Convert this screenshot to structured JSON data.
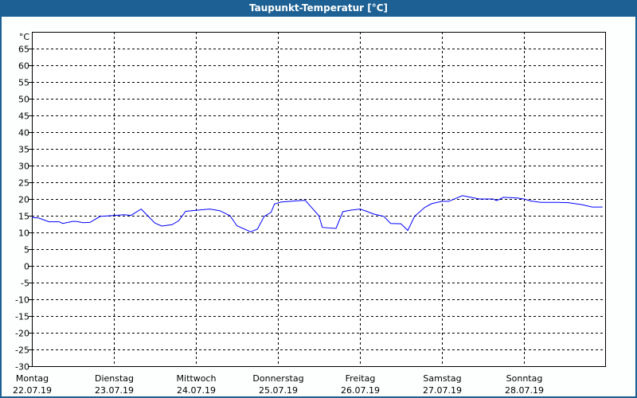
{
  "window": {
    "title": "Taupunkt-Temperatur [°C]"
  },
  "chart_data": {
    "type": "line",
    "title": "Taupunkt-Temperatur [°C]",
    "ylabel": "°C",
    "ylim": [
      -30,
      70
    ],
    "yticks": [
      -30,
      -25,
      -20,
      -15,
      -10,
      -5,
      0,
      5,
      10,
      15,
      20,
      25,
      30,
      35,
      40,
      45,
      50,
      55,
      60,
      65
    ],
    "xlim": [
      "22.07.19 00:00",
      "29.07.19 00:00"
    ],
    "xticks": [
      {
        "day": "Montag",
        "date": "22.07.19"
      },
      {
        "day": "Dienstag",
        "date": "23.07.19"
      },
      {
        "day": "Mittwoch",
        "date": "24.07.19"
      },
      {
        "day": "Donnerstag",
        "date": "25.07.19"
      },
      {
        "day": "Freitag",
        "date": "26.07.19"
      },
      {
        "day": "Samstag",
        "date": "27.07.19"
      },
      {
        "day": "Sonntag",
        "date": "28.07.19"
      }
    ],
    "grid": true,
    "line_color": "#0000ff",
    "series": [
      {
        "points": [
          [
            "22.07.19 00:00",
            14.5
          ],
          [
            "22.07.19 02:00",
            14.3
          ],
          [
            "22.07.19 05:00",
            13.2
          ],
          [
            "22.07.19 08:00",
            13.2
          ],
          [
            "22.07.19 09:00",
            12.7
          ],
          [
            "22.07.19 12:00",
            13.3
          ],
          [
            "22.07.19 13:00",
            13.3
          ],
          [
            "22.07.19 15:00",
            12.9
          ],
          [
            "22.07.19 17:00",
            13.0
          ],
          [
            "22.07.19 20:00",
            14.8
          ],
          [
            "22.07.19 23:00",
            15.0
          ],
          [
            "23.07.19 03:00",
            15.3
          ],
          [
            "23.07.19 05:00",
            15.1
          ],
          [
            "23.07.19 08:00",
            17.0
          ],
          [
            "23.07.19 12:00",
            12.8
          ],
          [
            "23.07.19 14:00",
            11.9
          ],
          [
            "23.07.19 17:00",
            12.3
          ],
          [
            "23.07.19 19:00",
            13.5
          ],
          [
            "23.07.19 21:00",
            16.3
          ],
          [
            "24.07.19 00:00",
            16.6
          ],
          [
            "24.07.19 04:00",
            17.0
          ],
          [
            "24.07.19 07:00",
            16.5
          ],
          [
            "24.07.19 10:00",
            15.0
          ],
          [
            "24.07.19 12:00",
            12.0
          ],
          [
            "24.07.19 16:00",
            10.2
          ],
          [
            "24.07.19 18:00",
            11.0
          ],
          [
            "24.07.19 20:00",
            14.8
          ],
          [
            "24.07.19 22:00",
            16.0
          ],
          [
            "24.07.19 23:00",
            18.5
          ],
          [
            "25.07.19 01:00",
            19.1
          ],
          [
            "25.07.19 06:00",
            19.5
          ],
          [
            "25.07.19 08:00",
            19.6
          ],
          [
            "25.07.19 10:00",
            17.3
          ],
          [
            "25.07.19 12:00",
            15.0
          ],
          [
            "25.07.19 13:00",
            11.5
          ],
          [
            "25.07.19 17:00",
            11.2
          ],
          [
            "25.07.19 19:00",
            16.2
          ],
          [
            "25.07.19 21:00",
            16.6
          ],
          [
            "26.07.19 00:00",
            17.0
          ],
          [
            "26.07.19 02:00",
            16.3
          ],
          [
            "26.07.19 04:00",
            15.5
          ],
          [
            "26.07.19 07:00",
            14.8
          ],
          [
            "26.07.19 09:00",
            12.7
          ],
          [
            "26.07.19 12:00",
            12.6
          ],
          [
            "26.07.19 14:00",
            10.6
          ],
          [
            "26.07.19 16:00",
            14.8
          ],
          [
            "26.07.19 19:00",
            17.5
          ],
          [
            "26.07.19 21:00",
            18.6
          ],
          [
            "27.07.19 00:00",
            19.3
          ],
          [
            "27.07.19 02:00",
            19.3
          ],
          [
            "27.07.19 06:00",
            21.0
          ],
          [
            "27.07.19 08:00",
            20.6
          ],
          [
            "27.07.19 11:00",
            20.0
          ],
          [
            "27.07.19 15:00",
            20.0
          ],
          [
            "27.07.19 16:00",
            19.5
          ],
          [
            "27.07.19 18:00",
            20.5
          ],
          [
            "27.07.19 22:00",
            20.3
          ],
          [
            "28.07.19 00:00",
            20.0
          ],
          [
            "28.07.19 02:00",
            19.4
          ],
          [
            "28.07.19 05:00",
            19.0
          ],
          [
            "28.07.19 10:00",
            19.0
          ],
          [
            "28.07.19 13:00",
            18.9
          ],
          [
            "28.07.19 17:00",
            18.3
          ],
          [
            "28.07.19 20:00",
            17.6
          ],
          [
            "28.07.19 23:00",
            17.6
          ]
        ]
      }
    ]
  }
}
